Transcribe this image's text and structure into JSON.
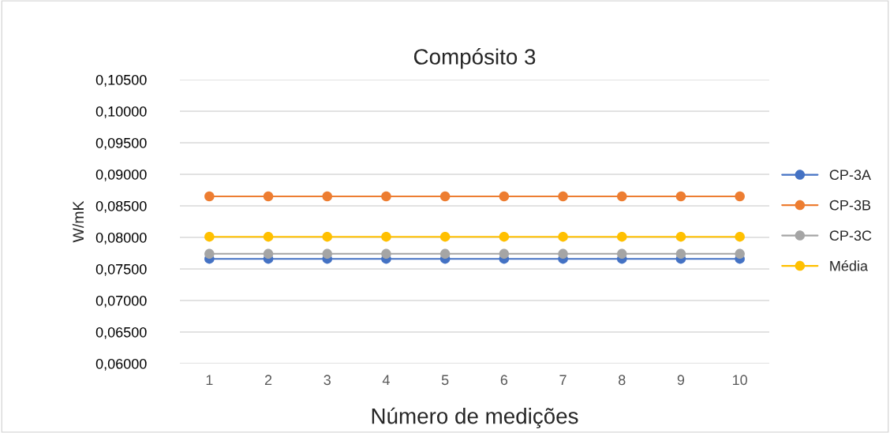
{
  "chart_data": {
    "type": "line",
    "title": "Compósito 3",
    "xlabel": "Número de medições",
    "ylabel": "W/mK",
    "categories": [
      "1",
      "2",
      "3",
      "4",
      "5",
      "6",
      "7",
      "8",
      "9",
      "10"
    ],
    "series": [
      {
        "name": "CP-3A",
        "color": "#4472c4",
        "values": [
          0.0766,
          0.0766,
          0.0766,
          0.0766,
          0.0766,
          0.0766,
          0.0766,
          0.0766,
          0.0766,
          0.0766
        ]
      },
      {
        "name": "CP-3B",
        "color": "#ed7d31",
        "values": [
          0.0865,
          0.0865,
          0.0865,
          0.0865,
          0.0865,
          0.0865,
          0.0865,
          0.0865,
          0.0865,
          0.0865
        ]
      },
      {
        "name": "CP-3C",
        "color": "#a5a5a5",
        "values": [
          0.0774,
          0.0774,
          0.0774,
          0.0774,
          0.0774,
          0.0774,
          0.0774,
          0.0774,
          0.0774,
          0.0774
        ]
      },
      {
        "name": "Média",
        "color": "#ffc000",
        "values": [
          0.0801,
          0.0801,
          0.0801,
          0.0801,
          0.0801,
          0.0801,
          0.0801,
          0.0801,
          0.0801,
          0.0801
        ]
      }
    ],
    "ylim": [
      0.06,
      0.105
    ],
    "yticks": [
      {
        "value": 0.06,
        "label": "0,06000"
      },
      {
        "value": 0.065,
        "label": "0,06500"
      },
      {
        "value": 0.07,
        "label": "0,07000"
      },
      {
        "value": 0.075,
        "label": "0,07500"
      },
      {
        "value": 0.08,
        "label": "0,08000"
      },
      {
        "value": 0.085,
        "label": "0,08500"
      },
      {
        "value": 0.09,
        "label": "0,09000"
      },
      {
        "value": 0.095,
        "label": "0,09500"
      },
      {
        "value": 0.1,
        "label": "0,10000"
      },
      {
        "value": 0.105,
        "label": "0,10500"
      }
    ],
    "grid": "y",
    "legend": "right",
    "marker": "circle",
    "line_style": "solid"
  }
}
